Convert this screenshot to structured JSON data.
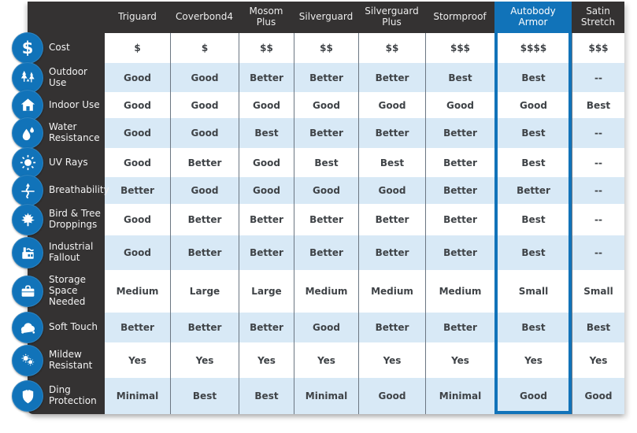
{
  "table": {
    "columns": [
      "Triguard",
      "Coverbond4",
      "Mosom Plus",
      "Silverguard",
      "Silverguard Plus",
      "Stormproof",
      "Autobody Armor",
      "Satin Stretch"
    ],
    "highlighted_column": "Autobody Armor",
    "rows": [
      {
        "label": "Cost",
        "icon": "dollar-icon",
        "values": [
          "$",
          "$",
          "$$",
          "$$",
          "$$",
          "$$$",
          "$$$$",
          "$$$"
        ]
      },
      {
        "label": "Outdoor Use",
        "icon": "trees-icon",
        "values": [
          "Good",
          "Good",
          "Better",
          "Better",
          "Better",
          "Best",
          "Best",
          "--"
        ]
      },
      {
        "label": "Indoor Use",
        "icon": "house-icon",
        "values": [
          "Good",
          "Good",
          "Good",
          "Good",
          "Good",
          "Good",
          "Good",
          "Best"
        ]
      },
      {
        "label": "Water Resistance",
        "icon": "droplets-icon",
        "values": [
          "Good",
          "Good",
          "Best",
          "Better",
          "Better",
          "Better",
          "Best",
          "--"
        ]
      },
      {
        "label": "UV Rays",
        "icon": "sun-icon",
        "values": [
          "Good",
          "Better",
          "Good",
          "Best",
          "Best",
          "Better",
          "Best",
          "--"
        ]
      },
      {
        "label": "Breathability",
        "icon": "airflow-icon",
        "values": [
          "Better",
          "Good",
          "Good",
          "Good",
          "Good",
          "Better",
          "Better",
          "--"
        ]
      },
      {
        "label": "Bird & Tree Droppings",
        "icon": "leaf-icon",
        "values": [
          "Good",
          "Better",
          "Better",
          "Better",
          "Better",
          "Better",
          "Best",
          "--"
        ]
      },
      {
        "label": "Industrial Fallout",
        "icon": "factory-icon",
        "values": [
          "Good",
          "Better",
          "Better",
          "Better",
          "Better",
          "Better",
          "Best",
          "--"
        ]
      },
      {
        "label": "Storage Space Needed",
        "icon": "briefcase-icon",
        "values": [
          "Medium",
          "Large",
          "Large",
          "Medium",
          "Medium",
          "Medium",
          "Small",
          "Small"
        ]
      },
      {
        "label": "Soft Touch",
        "icon": "cloud-icon",
        "values": [
          "Better",
          "Better",
          "Better",
          "Good",
          "Better",
          "Better",
          "Best",
          "Best"
        ]
      },
      {
        "label": "Mildew Resistant",
        "icon": "spores-icon",
        "values": [
          "Yes",
          "Yes",
          "Yes",
          "Yes",
          "Yes",
          "Yes",
          "Yes",
          "Yes"
        ]
      },
      {
        "label": "Ding Protection",
        "icon": "shield-icon",
        "values": [
          "Minimal",
          "Best",
          "Best",
          "Minimal",
          "Good",
          "Minimal",
          "Good",
          "Good"
        ]
      }
    ]
  },
  "colors": {
    "accent_blue": "#1173b9",
    "panel_dark": "#343232",
    "stripe_blue": "#d8e9f6"
  }
}
